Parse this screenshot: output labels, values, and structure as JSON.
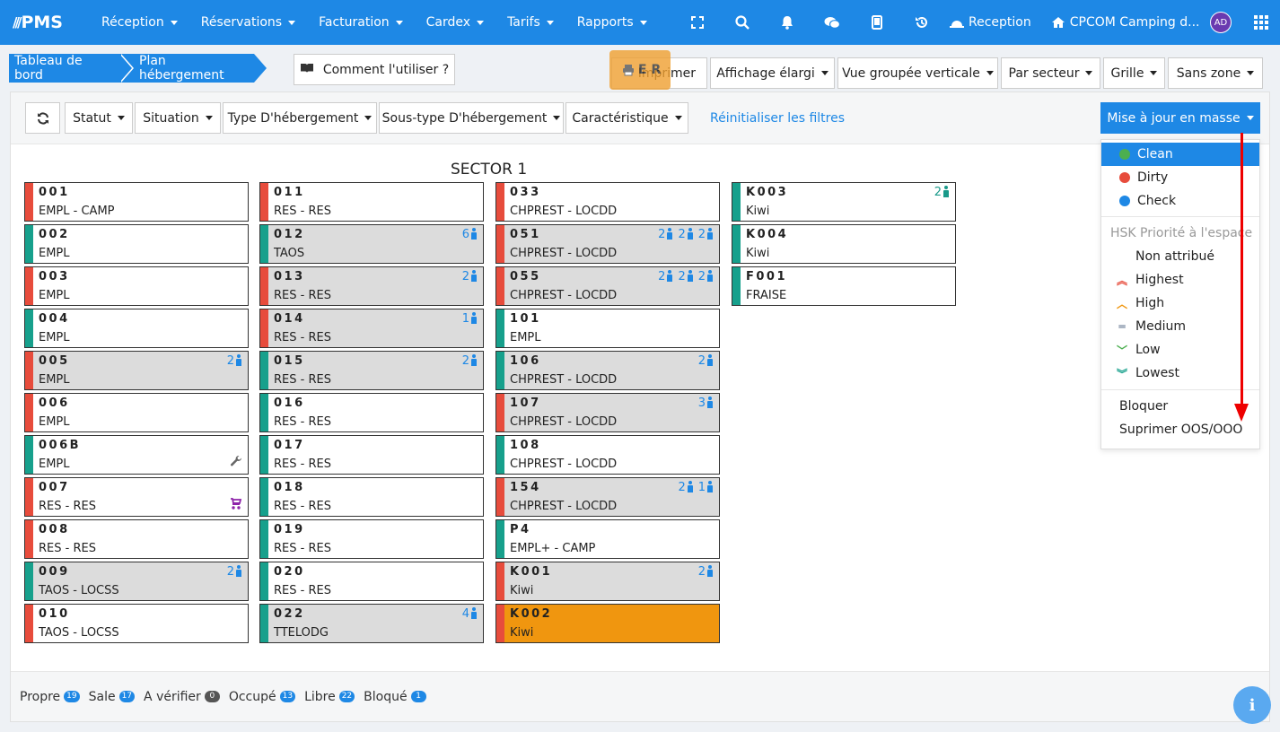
{
  "topbar": {
    "brand": "PMS",
    "nav": [
      "Réception",
      "Réservations",
      "Facturation",
      "Cardex",
      "Tarifs",
      "Rapports"
    ],
    "reception": "Reception",
    "camping": "CPCOM Camping d...",
    "avatar": "AD"
  },
  "breadcrumb": {
    "item1": "Tableau de bord",
    "item2": "Plan hébergement"
  },
  "howto": "Comment l'utiliser ?",
  "toolbar": {
    "print": "Imprimer",
    "wide": "Affichage élargi",
    "vertical": "Vue groupée verticale",
    "sector": "Par secteur",
    "grid": "Grille",
    "zone": "Sans zone"
  },
  "floating": "E R",
  "filters": {
    "statut": "Statut",
    "situation": "Situation",
    "type": "Type D'hébergement",
    "subtype": "Sous-type D'hébergement",
    "caract": "Caractéristique",
    "reset": "Réinitialiser les filtres",
    "bulk": "Mise à jour en masse"
  },
  "sector": "SECTOR 1",
  "colors": {
    "red": "#e74c3c",
    "teal": "#17a08c",
    "grey": "#dcdcdc",
    "orange": "#f0960f",
    "blue": "#1e88e5"
  },
  "units": [
    [
      {
        "name": "001",
        "type": "EMPL - CAMP",
        "status": "red",
        "bg": "white"
      },
      {
        "name": "002",
        "type": "EMPL",
        "status": "teal",
        "bg": "white"
      },
      {
        "name": "003",
        "type": "EMPL",
        "status": "red",
        "bg": "white"
      },
      {
        "name": "004",
        "type": "EMPL",
        "status": "teal",
        "bg": "white"
      },
      {
        "name": "005",
        "type": "EMPL",
        "status": "red",
        "bg": "grey",
        "occ": "2 adult"
      },
      {
        "name": "006",
        "type": "EMPL",
        "status": "red",
        "bg": "white"
      },
      {
        "name": "006B",
        "type": "EMPL",
        "status": "teal",
        "bg": "white",
        "icon": "wrench-icon"
      },
      {
        "name": "007",
        "type": "RES - RES",
        "status": "red",
        "bg": "white",
        "icon": "stroller-icon"
      },
      {
        "name": "008",
        "type": "RES - RES",
        "status": "red",
        "bg": "white"
      },
      {
        "name": "009",
        "type": "TAOS - LOCSS",
        "status": "teal",
        "bg": "grey",
        "occ": "2 adult"
      },
      {
        "name": "010",
        "type": "TAOS - LOCSS",
        "status": "red",
        "bg": "white"
      }
    ],
    [
      {
        "name": "011",
        "type": "RES - RES",
        "status": "red",
        "bg": "white"
      },
      {
        "name": "012",
        "type": "TAOS",
        "status": "teal",
        "bg": "grey",
        "occ": "6 adult"
      },
      {
        "name": "013",
        "type": "RES - RES",
        "status": "red",
        "bg": "grey",
        "occ": "2 adult"
      },
      {
        "name": "014",
        "type": "RES - RES",
        "status": "red",
        "bg": "grey",
        "occ": "1 adult"
      },
      {
        "name": "015",
        "type": "RES - RES",
        "status": "teal",
        "bg": "grey",
        "occ": "2 adult"
      },
      {
        "name": "016",
        "type": "RES - RES",
        "status": "teal",
        "bg": "white"
      },
      {
        "name": "017",
        "type": "RES - RES",
        "status": "teal",
        "bg": "white"
      },
      {
        "name": "018",
        "type": "RES - RES",
        "status": "teal",
        "bg": "white"
      },
      {
        "name": "019",
        "type": "RES - RES",
        "status": "teal",
        "bg": "white"
      },
      {
        "name": "020",
        "type": "RES - RES",
        "status": "teal",
        "bg": "white"
      },
      {
        "name": "022",
        "type": "TTELODG",
        "status": "teal",
        "bg": "grey",
        "occ": "4 adult"
      }
    ],
    [
      {
        "name": "033",
        "type": "CHPREST - LOCDD",
        "status": "red",
        "bg": "white"
      },
      {
        "name": "051",
        "type": "CHPREST - LOCDD",
        "status": "red",
        "bg": "grey",
        "occ": "2 adult · 2 adult · 2 child"
      },
      {
        "name": "055",
        "type": "CHPREST - LOCDD",
        "status": "red",
        "bg": "grey",
        "occ": "2 adult · 2 adult · 2 child"
      },
      {
        "name": "101",
        "type": "EMPL",
        "status": "teal",
        "bg": "white"
      },
      {
        "name": "106",
        "type": "CHPREST - LOCDD",
        "status": "teal",
        "bg": "grey",
        "occ": "2 adult"
      },
      {
        "name": "107",
        "type": "CHPREST - LOCDD",
        "status": "red",
        "bg": "grey",
        "occ": "3 adult"
      },
      {
        "name": "108",
        "type": "CHPREST - LOCDD",
        "status": "teal",
        "bg": "white"
      },
      {
        "name": "154",
        "type": "CHPREST - LOCDD",
        "status": "red",
        "bg": "grey",
        "occ": "2 adult · 1 child"
      },
      {
        "name": "P4",
        "type": "EMPL+ - CAMP",
        "status": "teal",
        "bg": "white"
      },
      {
        "name": "K001",
        "type": "Kiwi",
        "status": "red",
        "bg": "grey",
        "occ": "2 adult"
      },
      {
        "name": "K002",
        "type": "Kiwi",
        "status": "red",
        "bg": "orange"
      }
    ],
    [
      {
        "name": "K003",
        "type": "Kiwi",
        "status": "teal",
        "bg": "white",
        "occ": "2 adult",
        "occColor": "teal"
      },
      {
        "name": "K004",
        "type": "Kiwi",
        "status": "teal",
        "bg": "white"
      },
      {
        "name": "F001",
        "type": "FRAISE",
        "status": "teal",
        "bg": "white"
      }
    ]
  ],
  "legend": [
    {
      "label": "Propre",
      "count": "19"
    },
    {
      "label": "Sale",
      "count": "17"
    },
    {
      "label": "A vérifier",
      "count": "0",
      "dark": true
    },
    {
      "label": "Occupé",
      "count": "13"
    },
    {
      "label": "Libre",
      "count": "22"
    },
    {
      "label": "Bloqué",
      "count": "1"
    }
  ],
  "dropdown": {
    "clean": "Clean",
    "dirty": "Dirty",
    "check": "Check",
    "hskHeader": "HSK Priorité à l'espace",
    "none": "Non attribué",
    "highest": "Highest",
    "high": "High",
    "medium": "Medium",
    "low": "Low",
    "lowest": "Lowest",
    "block": "Bloquer",
    "removeOOS": "Suprimer OOS/OOO"
  }
}
